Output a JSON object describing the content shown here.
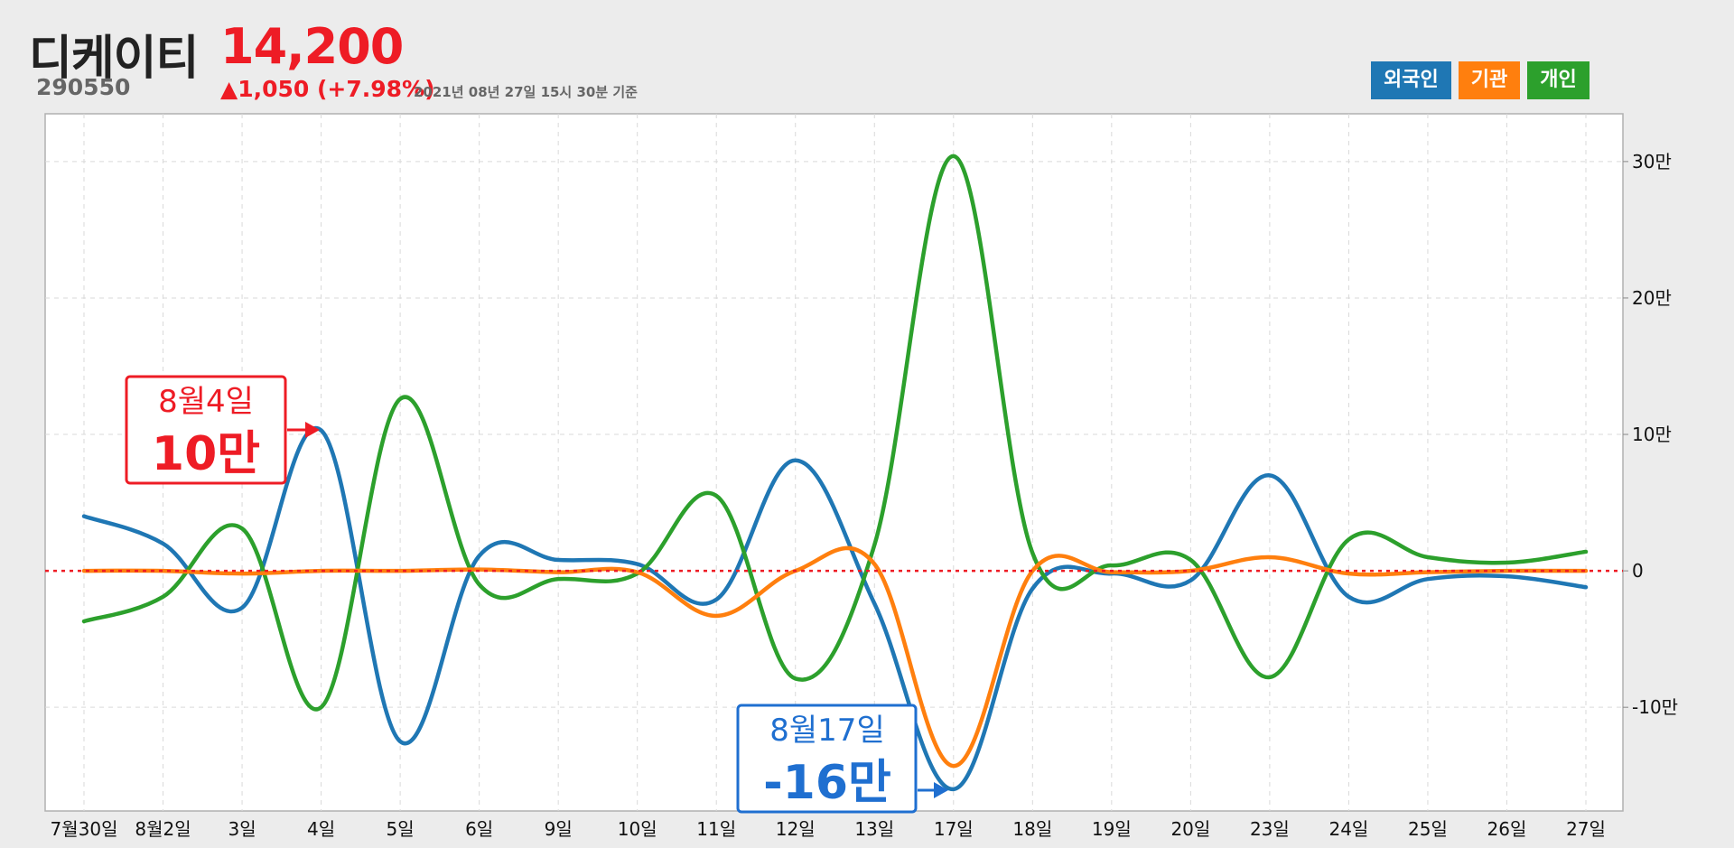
{
  "header": {
    "name": "디케이티",
    "price": "14,200",
    "code": "290550",
    "change": "▲1,050 (+7.98%)",
    "timestamp": "2021년 08년 27일 15시 30분 기준"
  },
  "legend": [
    {
      "label": "외국인",
      "color": "#1f77b4"
    },
    {
      "label": "기관",
      "color": "#ff7f0e"
    },
    {
      "label": "개인",
      "color": "#2ca02c"
    }
  ],
  "callouts": {
    "red": {
      "date": "8월4일",
      "value": "10만",
      "color": "#ee1c25"
    },
    "blue": {
      "date": "8월17일",
      "value": "-16만",
      "color": "#1f6fd0"
    }
  },
  "chart_data": {
    "type": "line",
    "categories": [
      "7월30일",
      "8월2일",
      "3일",
      "4일",
      "5일",
      "6일",
      "9일",
      "10일",
      "11일",
      "12일",
      "13일",
      "17일",
      "18일",
      "19일",
      "20일",
      "23일",
      "24일",
      "25일",
      "26일",
      "27일"
    ],
    "y_tick_labels": [
      "30만",
      "20만",
      "10만",
      "0",
      "-10만"
    ],
    "y_ticks": [
      300000,
      200000,
      100000,
      0,
      -100000
    ],
    "ylim": [
      -176000,
      335000
    ],
    "zero_line_color": "#ee1c25",
    "grid": true,
    "series": [
      {
        "name": "외국인",
        "color": "#1f77b4",
        "values": [
          40000,
          20000,
          -27000,
          103000,
          -125000,
          11000,
          8000,
          5000,
          -21000,
          81000,
          -24000,
          -160000,
          -13000,
          -2000,
          -7000,
          70000,
          -19000,
          -6000,
          -4000,
          -12000
        ]
      },
      {
        "name": "기관",
        "color": "#ff7f0e",
        "values": [
          0,
          0,
          -2000,
          0,
          0,
          1000,
          -1000,
          -1000,
          -33000,
          0,
          5000,
          -143000,
          0,
          -1000,
          0,
          10000,
          -2000,
          -1000,
          0,
          0
        ]
      },
      {
        "name": "개인",
        "color": "#2ca02c",
        "values": [
          -37000,
          -19000,
          31000,
          -100000,
          126000,
          -10000,
          -6000,
          -2000,
          55000,
          -79000,
          19000,
          304000,
          13000,
          4000,
          8000,
          -78000,
          23000,
          10000,
          6000,
          14000
        ]
      }
    ]
  }
}
